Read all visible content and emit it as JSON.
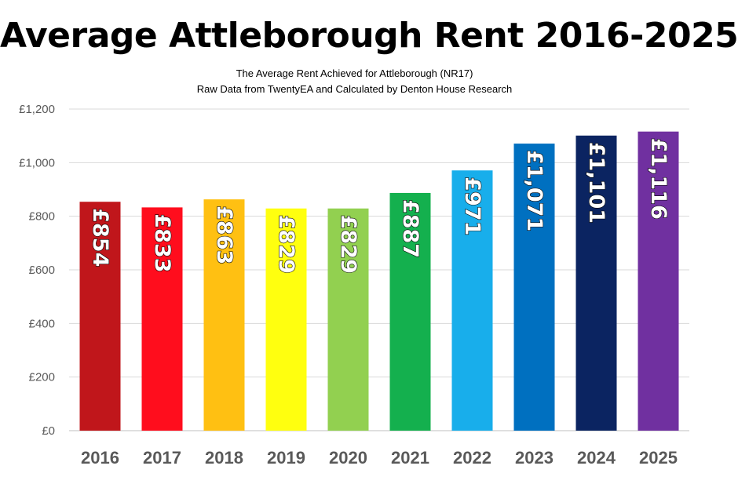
{
  "title": "Average Attleborough Rent 2016-2025",
  "subtitle_line1": "The Average Rent Achieved for Attleborough (NR17)",
  "subtitle_line2": "Raw Data from TwentyEA and Calculated by Denton House Research",
  "chart_data": {
    "type": "bar",
    "title": "Average Attleborough Rent 2016-2025",
    "categories": [
      "2016",
      "2017",
      "2018",
      "2019",
      "2020",
      "2021",
      "2022",
      "2023",
      "2024",
      "2025"
    ],
    "values": [
      854,
      833,
      863,
      829,
      829,
      887,
      971,
      1071,
      1101,
      1116
    ],
    "data_labels": [
      "£854",
      "£833",
      "£863",
      "£829",
      "£829",
      "£887",
      "£971",
      "£1,071",
      "£1,101",
      "£1,116"
    ],
    "bar_colors": [
      "#C0161B",
      "#FF0D1D",
      "#FFC012",
      "#FFFF0F",
      "#92D050",
      "#14B04E",
      "#18AEEB",
      "#0070C0",
      "#0B2461",
      "#7030A0"
    ],
    "y_ticks": [
      0,
      200,
      400,
      600,
      800,
      1000,
      1200
    ],
    "y_tick_labels": [
      "£0",
      "£200",
      "£400",
      "£600",
      "£800",
      "£1,000",
      "£1,200"
    ],
    "ylim": [
      0,
      1200
    ],
    "grid": true,
    "legend": "none",
    "xlabel": "",
    "ylabel": ""
  }
}
